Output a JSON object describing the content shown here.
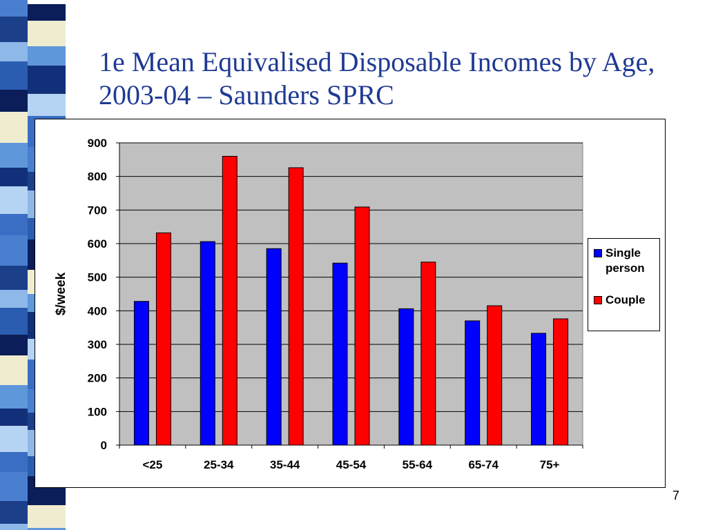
{
  "slide": {
    "title": "1e Mean Equivalised Disposable Incomes by Age, 2003-04 – Saunders SPRC",
    "page_number": "7"
  },
  "colors": {
    "title": "#1f3a93",
    "plot_background": "#c0c0c0",
    "single": "#0000ff",
    "couple": "#ff0000"
  },
  "chart_data": {
    "type": "bar",
    "title": "",
    "xlabel": "",
    "ylabel": "$/week",
    "ylim": [
      0,
      900
    ],
    "yticks": [
      "0",
      "100",
      "200",
      "300",
      "400",
      "500",
      "600",
      "700",
      "800",
      "900"
    ],
    "categories": [
      "<25",
      "25-34",
      "35-44",
      "45-54",
      "55-64",
      "65-74",
      "75+"
    ],
    "series": [
      {
        "name": "Single person",
        "color": "#0000ff",
        "values": [
          428,
          606,
          585,
          542,
          406,
          370,
          333
        ]
      },
      {
        "name": "Couple",
        "color": "#ff0000",
        "values": [
          632,
          860,
          826,
          709,
          545,
          415,
          376
        ]
      }
    ],
    "grid": true,
    "legend": "right"
  }
}
